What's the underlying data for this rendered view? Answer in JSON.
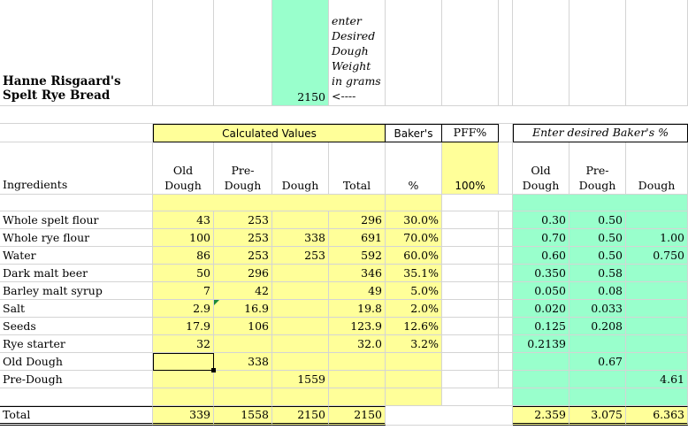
{
  "title": "Hanne Risgaard's Spelt Rye Bread",
  "desired_weight": {
    "value": "2150",
    "note_lines": [
      "enter",
      "Desired",
      "Dough",
      "Weight",
      "in grams",
      "<----"
    ]
  },
  "section_calc": "Calculated Values",
  "section_bakers": "Baker's",
  "section_pff": "PFF%",
  "section_enter": "Enter desired Baker's %",
  "col_headers": {
    "ingredients": "Ingredients",
    "old_dough": [
      "Old",
      "Dough"
    ],
    "pre_dough": [
      "Pre-",
      "Dough"
    ],
    "dough": "Dough",
    "total": "Total",
    "pct": "%",
    "pff_val": "100%"
  },
  "rows": [
    {
      "name": "Whole spelt flour",
      "old": "43",
      "pre": "253",
      "dough": "",
      "total": "296",
      "pct": "30.0%",
      "e_old": "0.30",
      "e_pre": "0.50",
      "e_dough": ""
    },
    {
      "name": "Whole rye flour",
      "old": "100",
      "pre": "253",
      "dough": "338",
      "total": "691",
      "pct": "70.0%",
      "e_old": "0.70",
      "e_pre": "0.50",
      "e_dough": "1.00"
    },
    {
      "name": "Water",
      "old": "86",
      "pre": "253",
      "dough": "253",
      "total": "592",
      "pct": "60.0%",
      "e_old": "0.60",
      "e_pre": "0.50",
      "e_dough": "0.750"
    },
    {
      "name": "Dark malt beer",
      "old": "50",
      "pre": "296",
      "dough": "",
      "total": "346",
      "pct": "35.1%",
      "e_old": "0.350",
      "e_pre": "0.58",
      "e_dough": ""
    },
    {
      "name": "Barley malt syrup",
      "old": "7",
      "pre": "42",
      "dough": "",
      "total": "49",
      "pct": "5.0%",
      "e_old": "0.050",
      "e_pre": "0.08",
      "e_dough": ""
    },
    {
      "name": "Salt",
      "old": "2.9",
      "pre": "16.9",
      "dough": "",
      "total": "19.8",
      "pct": "2.0%",
      "e_old": "0.020",
      "e_pre": "0.033",
      "e_dough": ""
    },
    {
      "name": "Seeds",
      "old": "17.9",
      "pre": "106",
      "dough": "",
      "total": "123.9",
      "pct": "12.6%",
      "e_old": "0.125",
      "e_pre": "0.208",
      "e_dough": ""
    },
    {
      "name": "Rye starter",
      "old": "32",
      "pre": "",
      "dough": "",
      "total": "32.0",
      "pct": "3.2%",
      "e_old": "0.2139",
      "e_pre": "",
      "e_dough": ""
    },
    {
      "name": "Old Dough",
      "old": "",
      "pre": "338",
      "dough": "",
      "total": "",
      "pct": "",
      "e_old": "",
      "e_pre": "0.67",
      "e_dough": ""
    },
    {
      "name": "Pre-Dough",
      "old": "",
      "pre": "",
      "dough": "1559",
      "total": "",
      "pct": "",
      "e_old": "",
      "e_pre": "",
      "e_dough": "4.61"
    }
  ],
  "total_row": {
    "name": "Total",
    "old": "339",
    "pre": "1558",
    "dough": "2150",
    "total": "2150",
    "e_old": "2.359",
    "e_pre": "3.075",
    "e_dough": "6.363"
  }
}
